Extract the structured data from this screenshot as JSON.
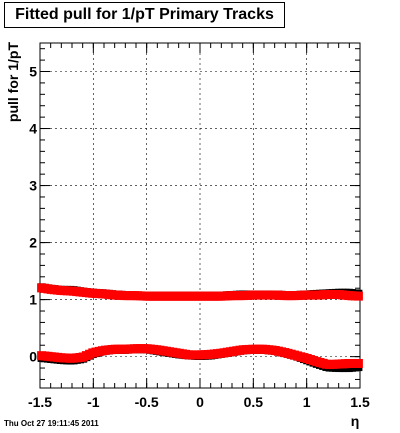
{
  "page": {
    "title": "Fitted pull for 1/pT  Primary Tracks",
    "timestamp": "Thu Oct 27 19:11:45 2011"
  },
  "chart_data": {
    "type": "scatter",
    "title": "Fitted pull for 1/pT  Primary Tracks",
    "xlabel": "η",
    "ylabel": "pull for 1/pT",
    "xlim": [
      -1.5,
      1.5
    ],
    "ylim": [
      -0.55,
      5.5
    ],
    "x_ticks": [
      "-1.5",
      "-1",
      "-0.5",
      "0",
      "0.5",
      "1",
      "1.5"
    ],
    "y_ticks": [
      "0",
      "1",
      "2",
      "3",
      "4",
      "5"
    ],
    "grid": true,
    "marker_colors": {
      "red": "#ff0000",
      "black": "#000000"
    },
    "series": [
      {
        "color": "#000000",
        "x": [
          -1.5,
          -1.4,
          -1.3,
          -1.2,
          -1.1,
          -1.0,
          -0.9,
          -0.8,
          -0.7,
          -0.6,
          -0.5,
          -0.4,
          -0.3,
          -0.2,
          -0.1,
          0.0,
          0.1,
          0.2,
          0.3,
          0.4,
          0.5,
          0.6,
          0.7,
          0.8,
          0.9,
          1.0,
          1.1,
          1.2,
          1.3,
          1.4,
          1.5
        ],
        "y": [
          1.22,
          1.19,
          1.17,
          1.17,
          1.14,
          1.12,
          1.11,
          1.09,
          1.08,
          1.07,
          1.07,
          1.07,
          1.07,
          1.07,
          1.07,
          1.07,
          1.07,
          1.07,
          1.08,
          1.09,
          1.09,
          1.09,
          1.09,
          1.08,
          1.08,
          1.09,
          1.1,
          1.11,
          1.12,
          1.12,
          1.1
        ]
      },
      {
        "color": "#ff0000",
        "x": [
          -1.5,
          -1.4,
          -1.3,
          -1.2,
          -1.1,
          -1.0,
          -0.9,
          -0.8,
          -0.7,
          -0.6,
          -0.5,
          -0.4,
          -0.3,
          -0.2,
          -0.1,
          0.0,
          0.1,
          0.2,
          0.3,
          0.4,
          0.5,
          0.6,
          0.7,
          0.8,
          0.9,
          1.0,
          1.1,
          1.2,
          1.3,
          1.4,
          1.5
        ],
        "y": [
          1.21,
          1.18,
          1.16,
          1.15,
          1.13,
          1.11,
          1.1,
          1.08,
          1.07,
          1.07,
          1.06,
          1.06,
          1.06,
          1.06,
          1.06,
          1.06,
          1.06,
          1.06,
          1.07,
          1.07,
          1.08,
          1.08,
          1.08,
          1.07,
          1.07,
          1.08,
          1.08,
          1.09,
          1.09,
          1.07,
          1.06
        ]
      },
      {
        "color": "#000000",
        "x": [
          -1.5,
          -1.4,
          -1.3,
          -1.2,
          -1.1,
          -1.0,
          -0.9,
          -0.8,
          -0.7,
          -0.6,
          -0.5,
          -0.4,
          -0.3,
          -0.2,
          -0.1,
          0.0,
          0.1,
          0.2,
          0.3,
          0.4,
          0.5,
          0.6,
          0.7,
          0.8,
          0.9,
          1.0,
          1.1,
          1.2,
          1.3,
          1.4,
          1.5
        ],
        "y": [
          -0.02,
          -0.04,
          -0.06,
          -0.07,
          -0.04,
          0.05,
          0.1,
          0.12,
          0.12,
          0.13,
          0.13,
          0.1,
          0.07,
          0.04,
          0.02,
          0.01,
          0.02,
          0.05,
          0.08,
          0.11,
          0.12,
          0.12,
          0.1,
          0.06,
          0.01,
          -0.06,
          -0.13,
          -0.19,
          -0.2,
          -0.2,
          -0.18
        ]
      },
      {
        "color": "#ff0000",
        "x": [
          -1.5,
          -1.4,
          -1.3,
          -1.2,
          -1.1,
          -1.0,
          -0.9,
          -0.8,
          -0.7,
          -0.6,
          -0.5,
          -0.4,
          -0.3,
          -0.2,
          -0.1,
          0.0,
          0.1,
          0.2,
          0.3,
          0.4,
          0.5,
          0.6,
          0.7,
          0.8,
          0.9,
          1.0,
          1.1,
          1.2,
          1.3,
          1.4,
          1.5
        ],
        "y": [
          0.02,
          0.0,
          -0.02,
          -0.03,
          -0.01,
          0.07,
          0.11,
          0.13,
          0.13,
          0.14,
          0.14,
          0.12,
          0.09,
          0.06,
          0.03,
          0.03,
          0.04,
          0.06,
          0.09,
          0.12,
          0.13,
          0.13,
          0.11,
          0.07,
          0.02,
          -0.03,
          -0.09,
          -0.14,
          -0.13,
          -0.12,
          -0.12
        ]
      }
    ]
  }
}
